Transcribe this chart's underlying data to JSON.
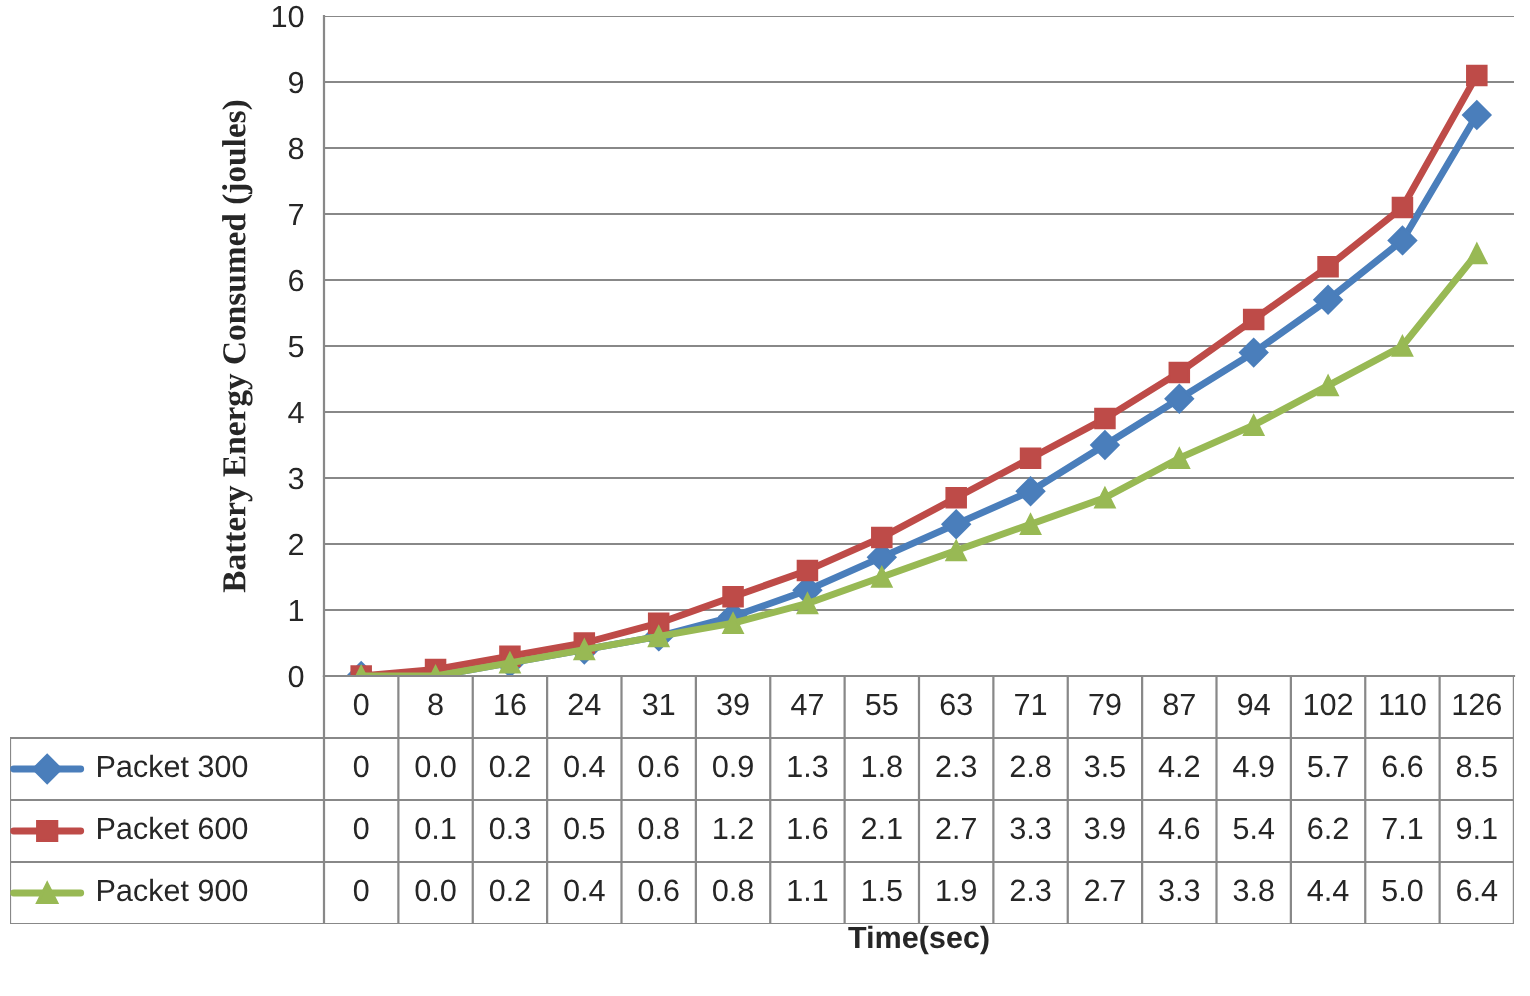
{
  "chart_data": {
    "type": "line",
    "annotations": [
      "Time(sec)"
    ],
    "ylabel": "Battery Energy Consumed (joules)",
    "categories": [
      "0",
      "8",
      "16",
      "24",
      "31",
      "39",
      "47",
      "55",
      "63",
      "71",
      "79",
      "87",
      "94",
      "102",
      "110",
      "126"
    ],
    "series": [
      {
        "name": "Packet 300",
        "color": "#4a7ebb",
        "marker": "diamond",
        "values": [
          0,
          0.0,
          0.2,
          0.4,
          0.6,
          0.9,
          1.3,
          1.8,
          2.3,
          2.8,
          3.5,
          4.2,
          4.9,
          5.7,
          6.6,
          8.5
        ],
        "value_labels": [
          "0",
          "0.0",
          "0.2",
          "0.4",
          "0.6",
          "0.9",
          "1.3",
          "1.8",
          "2.3",
          "2.8",
          "3.5",
          "4.2",
          "4.9",
          "5.7",
          "6.6",
          "8.5"
        ]
      },
      {
        "name": "Packet 600",
        "color": "#be4b48",
        "marker": "square",
        "values": [
          0,
          0.1,
          0.3,
          0.5,
          0.8,
          1.2,
          1.6,
          2.1,
          2.7,
          3.3,
          3.9,
          4.6,
          5.4,
          6.2,
          7.1,
          9.1
        ],
        "value_labels": [
          "0",
          "0.1",
          "0.3",
          "0.5",
          "0.8",
          "1.2",
          "1.6",
          "2.1",
          "2.7",
          "3.3",
          "3.9",
          "4.6",
          "5.4",
          "6.2",
          "7.1",
          "9.1"
        ]
      },
      {
        "name": "Packet 900",
        "color": "#98b954",
        "marker": "triangle",
        "values": [
          0,
          0.0,
          0.2,
          0.4,
          0.6,
          0.8,
          1.1,
          1.5,
          1.9,
          2.3,
          2.7,
          3.3,
          3.8,
          4.4,
          5.0,
          6.4
        ],
        "value_labels": [
          "0",
          "0.0",
          "0.2",
          "0.4",
          "0.6",
          "0.8",
          "1.1",
          "1.5",
          "1.9",
          "2.3",
          "2.7",
          "3.3",
          "3.8",
          "4.4",
          "5.0",
          "6.4"
        ]
      }
    ],
    "ylim": [
      0,
      10
    ],
    "yticks": [
      0,
      1,
      2,
      3,
      4,
      5,
      6,
      7,
      8,
      9,
      10
    ],
    "grid": "y",
    "legend": "bottom",
    "line_style": "solid"
  }
}
